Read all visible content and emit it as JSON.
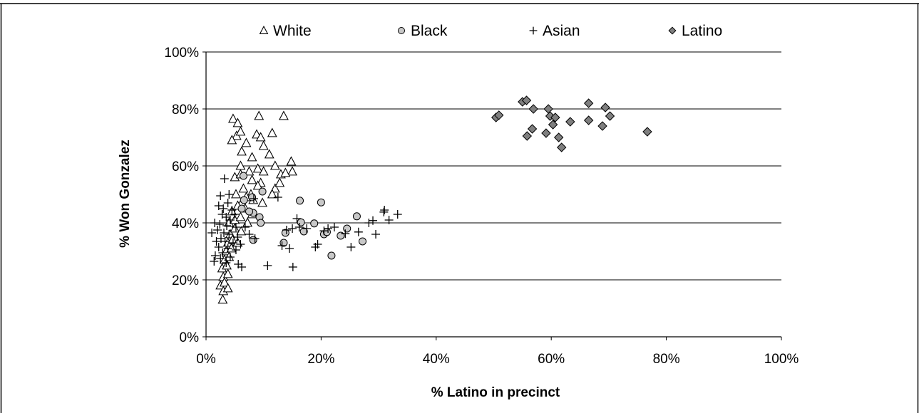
{
  "chart_data": {
    "type": "scatter",
    "title": "",
    "xlabel": "% Latino in precinct",
    "ylabel": "% Won Gonzalez",
    "xlim": [
      0,
      100
    ],
    "ylim": [
      0,
      100
    ],
    "x_ticks": [
      "0%",
      "20%",
      "40%",
      "60%",
      "80%",
      "100%"
    ],
    "y_ticks": [
      "0%",
      "20%",
      "40%",
      "60%",
      "80%",
      "100%"
    ],
    "grid": "horizontal",
    "legend_position": "top",
    "series": [
      {
        "name": "White",
        "marker": "triangle-open",
        "color": "#ffffff",
        "points": [
          [
            4.7,
            76.5
          ],
          [
            5.5,
            75
          ],
          [
            9.2,
            77.5
          ],
          [
            13.5,
            77.5
          ],
          [
            5.3,
            70.5
          ],
          [
            6,
            72
          ],
          [
            8.8,
            71
          ],
          [
            9.5,
            70
          ],
          [
            11.5,
            71.5
          ],
          [
            4.5,
            69
          ],
          [
            7,
            68
          ],
          [
            10,
            67
          ],
          [
            6.2,
            65
          ],
          [
            8,
            63
          ],
          [
            11,
            64
          ],
          [
            14.8,
            61.5
          ],
          [
            5,
            56
          ],
          [
            6,
            57
          ],
          [
            7.5,
            58
          ],
          [
            9,
            59
          ],
          [
            10,
            58
          ],
          [
            12,
            60
          ],
          [
            13,
            57
          ],
          [
            15,
            58
          ],
          [
            6,
            60
          ],
          [
            8,
            55
          ],
          [
            9.5,
            54
          ],
          [
            12,
            52
          ],
          [
            5.2,
            50
          ],
          [
            6.5,
            52
          ],
          [
            7.8,
            50
          ],
          [
            9,
            53
          ],
          [
            11.5,
            50
          ],
          [
            12.8,
            54
          ],
          [
            6.2,
            47
          ],
          [
            7,
            49
          ],
          [
            8.2,
            48
          ],
          [
            9.8,
            47
          ],
          [
            4.5,
            44
          ],
          [
            5.5,
            46
          ],
          [
            6.8,
            45
          ],
          [
            8,
            43
          ],
          [
            4,
            40
          ],
          [
            5,
            41
          ],
          [
            6,
            42
          ],
          [
            7.2,
            40
          ],
          [
            4.2,
            36
          ],
          [
            5,
            38
          ],
          [
            6.1,
            37
          ],
          [
            3.8,
            33
          ],
          [
            4.6,
            34
          ],
          [
            5.5,
            33
          ],
          [
            3.5,
            30
          ],
          [
            4.4,
            31
          ],
          [
            3.2,
            27
          ],
          [
            4,
            28
          ],
          [
            2.8,
            24
          ],
          [
            3.6,
            25
          ],
          [
            3,
            21
          ],
          [
            3.8,
            22
          ],
          [
            2.5,
            18
          ],
          [
            3.2,
            19
          ],
          [
            3,
            16
          ],
          [
            3.8,
            17
          ],
          [
            2.9,
            13
          ],
          [
            13.8,
            57.5
          ]
        ]
      },
      {
        "name": "Black",
        "marker": "circle",
        "color": "#c8c8c8",
        "points": [
          [
            6.5,
            56.5
          ],
          [
            9.8,
            51
          ],
          [
            8,
            49
          ],
          [
            6.6,
            48
          ],
          [
            16.3,
            47.8
          ],
          [
            20,
            47.2
          ],
          [
            6.2,
            45
          ],
          [
            8.2,
            43.5
          ],
          [
            7.5,
            44
          ],
          [
            9.3,
            42
          ],
          [
            26.2,
            42.3
          ],
          [
            9.5,
            40
          ],
          [
            18.8,
            39.8
          ],
          [
            16.5,
            40.2
          ],
          [
            24.5,
            38
          ],
          [
            13.8,
            36.5
          ],
          [
            17,
            37
          ],
          [
            20.5,
            36
          ],
          [
            23.4,
            35.5
          ],
          [
            21,
            36.8
          ],
          [
            8.2,
            34
          ],
          [
            13.5,
            33
          ],
          [
            27.2,
            33.5
          ],
          [
            21.8,
            28.5
          ]
        ]
      },
      {
        "name": "Asian",
        "marker": "plus",
        "color": "#000000",
        "points": [
          [
            3.2,
            55.5
          ],
          [
            4,
            50
          ],
          [
            2.5,
            49.5
          ],
          [
            3.8,
            47
          ],
          [
            2.2,
            46
          ],
          [
            3,
            45
          ],
          [
            4.5,
            44.5
          ],
          [
            5,
            43
          ],
          [
            2.8,
            43
          ],
          [
            3.5,
            42
          ],
          [
            4.2,
            41
          ],
          [
            1.5,
            40
          ],
          [
            2.4,
            39.5
          ],
          [
            3.6,
            39
          ],
          [
            5.2,
            38.5
          ],
          [
            2,
            37.5
          ],
          [
            1,
            36.5
          ],
          [
            3.1,
            36.5
          ],
          [
            4,
            36
          ],
          [
            5.5,
            35
          ],
          [
            2.6,
            34.5
          ],
          [
            1.8,
            33.5
          ],
          [
            3.3,
            33.5
          ],
          [
            4.7,
            33
          ],
          [
            6,
            32.5
          ],
          [
            2.2,
            31.5
          ],
          [
            3.8,
            31
          ],
          [
            5.2,
            30.5
          ],
          [
            2.9,
            29.5
          ],
          [
            1.6,
            28.5
          ],
          [
            4.2,
            28
          ],
          [
            2.5,
            27.5
          ],
          [
            1.4,
            26.5
          ],
          [
            3.5,
            26
          ],
          [
            5.6,
            25.5
          ],
          [
            6.2,
            24.5
          ],
          [
            8.3,
            48.5
          ],
          [
            12.5,
            49
          ],
          [
            6.8,
            38.5
          ],
          [
            7.5,
            36
          ],
          [
            8.5,
            34.5
          ],
          [
            15.8,
            41.5
          ],
          [
            16.2,
            38.5
          ],
          [
            14,
            37.5
          ],
          [
            15,
            38
          ],
          [
            17.5,
            38
          ],
          [
            13.2,
            32
          ],
          [
            14.5,
            31
          ],
          [
            10.7,
            25
          ],
          [
            15.1,
            24.5
          ],
          [
            19,
            31.5
          ],
          [
            19.4,
            32.5
          ],
          [
            20.5,
            37.2
          ],
          [
            21.2,
            38
          ],
          [
            22.3,
            38.5
          ],
          [
            24.2,
            36.2
          ],
          [
            25.2,
            31.5
          ],
          [
            26.5,
            36.8
          ],
          [
            28.3,
            40
          ],
          [
            29,
            40.8
          ],
          [
            29.5,
            36
          ],
          [
            31,
            44.5
          ],
          [
            30.9,
            43.8
          ],
          [
            31.8,
            41
          ],
          [
            33.3,
            43
          ]
        ]
      },
      {
        "name": "Latino",
        "marker": "diamond",
        "color": "#7f7f7f",
        "points": [
          [
            50.4,
            77
          ],
          [
            50.9,
            77.8
          ],
          [
            55,
            82.5
          ],
          [
            55.7,
            83
          ],
          [
            56.9,
            80
          ],
          [
            59.5,
            80
          ],
          [
            59.8,
            77.5
          ],
          [
            60.7,
            77
          ],
          [
            60.3,
            74.5
          ],
          [
            55.8,
            70.5
          ],
          [
            56.7,
            73
          ],
          [
            59.1,
            71.5
          ],
          [
            61.3,
            70
          ],
          [
            61.8,
            66.5
          ],
          [
            63.3,
            75.5
          ],
          [
            66.5,
            82
          ],
          [
            66.5,
            76
          ],
          [
            68.9,
            74
          ],
          [
            69.4,
            80.5
          ],
          [
            70.2,
            77.5
          ],
          [
            76.7,
            72
          ]
        ]
      }
    ]
  }
}
